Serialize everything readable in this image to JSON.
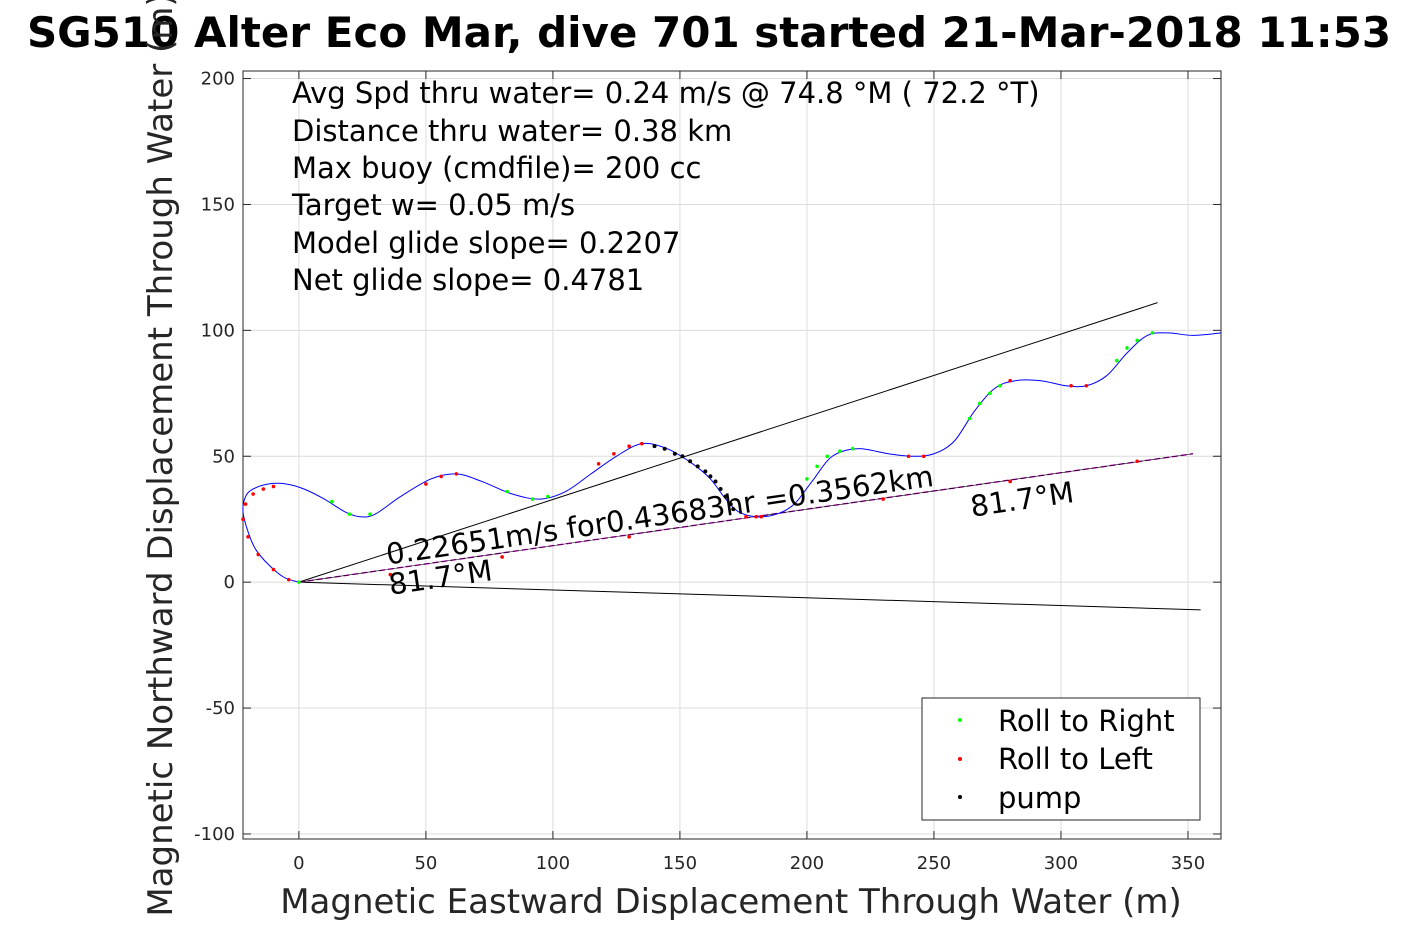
{
  "chart_data": {
    "type": "line",
    "title": "SG510 Alter Eco Mar, dive 701 started 21-Mar-2018 11:53",
    "xlabel": "Magnetic Eastward Displacement Through Water (m)",
    "ylabel": "Magnetic Northward Displacement Through Water (m)",
    "xlim": [
      -22,
      363
    ],
    "ylim": [
      -102,
      203
    ],
    "xticks": [
      0,
      50,
      100,
      150,
      200,
      250,
      300,
      350
    ],
    "yticks": [
      200,
      150,
      100,
      50,
      0,
      -50,
      -100
    ],
    "grid": true,
    "legend_position": "bottom-right",
    "info_lines": [
      "Avg Spd thru water=  0.24 m/s @  74.8 °M ( 72.2 °T)",
      "Distance thru water=  0.38 km",
      "Max buoy (cmdfile)= 200 cc",
      "Target w= 0.05 m/s",
      "Model glide slope= 0.2207",
      "Net glide slope= 0.4781"
    ],
    "track": {
      "color": "#0000ff",
      "x": [
        0,
        -6,
        -12,
        -17,
        -20,
        -22,
        -21,
        -18,
        -12,
        -5,
        2,
        10,
        18,
        24,
        30,
        40,
        52,
        62,
        72,
        84,
        95,
        105,
        115,
        125,
        135,
        145,
        155,
        162,
        168,
        173,
        180,
        188,
        195,
        202,
        210,
        220,
        232,
        242,
        250,
        258,
        266,
        274,
        282,
        292,
        302,
        310,
        318,
        326,
        334,
        342,
        352,
        363
      ],
      "y": [
        0,
        2,
        7,
        13,
        20,
        28,
        34,
        37,
        39,
        39,
        37,
        33,
        28,
        26,
        27,
        34,
        41,
        43,
        40,
        35,
        33,
        36,
        43,
        50,
        55,
        53,
        47,
        41,
        33,
        28,
        26,
        27,
        31,
        40,
        50,
        53,
        51,
        50,
        51,
        56,
        68,
        77,
        80,
        80,
        78,
        78,
        82,
        91,
        98,
        99,
        98,
        99
      ]
    },
    "lines": [
      {
        "name": "upper-bound",
        "color": "#000000",
        "x": [
          0,
          338
        ],
        "y": [
          0,
          111
        ]
      },
      {
        "name": "lower-bound",
        "color": "#000000",
        "x": [
          0,
          355
        ],
        "y": [
          0,
          -11
        ]
      },
      {
        "name": "heading-line",
        "color": "#c000c0",
        "x": [
          0,
          352
        ],
        "y": [
          0,
          51
        ]
      }
    ],
    "markers": {
      "roll_right": {
        "label": "Roll to Right",
        "color": "#00ff00",
        "points": [
          [
            0,
            0
          ],
          [
            13,
            32
          ],
          [
            20,
            27
          ],
          [
            28,
            27
          ],
          [
            82,
            36
          ],
          [
            92,
            33
          ],
          [
            98,
            34
          ],
          [
            200,
            41
          ],
          [
            204,
            46
          ],
          [
            208,
            50
          ],
          [
            213,
            52
          ],
          [
            218,
            53
          ],
          [
            264,
            65
          ],
          [
            268,
            71
          ],
          [
            272,
            75
          ],
          [
            276,
            78
          ],
          [
            322,
            88
          ],
          [
            326,
            93
          ],
          [
            330,
            96
          ],
          [
            336,
            99
          ]
        ]
      },
      "roll_left": {
        "label": "Roll to Left",
        "color": "#ff0000",
        "points": [
          [
            -4,
            1
          ],
          [
            -10,
            5
          ],
          [
            -16,
            11
          ],
          [
            -20,
            18
          ],
          [
            -22,
            25
          ],
          [
            -21,
            31
          ],
          [
            -18,
            35
          ],
          [
            -14,
            37
          ],
          [
            -10,
            38
          ],
          [
            50,
            39
          ],
          [
            56,
            42
          ],
          [
            62,
            43
          ],
          [
            118,
            47
          ],
          [
            124,
            51
          ],
          [
            130,
            54
          ],
          [
            135,
            55
          ],
          [
            176,
            26
          ],
          [
            182,
            26
          ],
          [
            240,
            50
          ],
          [
            246,
            50
          ],
          [
            280,
            80
          ],
          [
            304,
            78
          ],
          [
            310,
            78
          ],
          [
            36,
            3
          ],
          [
            80,
            10
          ],
          [
            130,
            18
          ],
          [
            180,
            26
          ],
          [
            230,
            33
          ],
          [
            280,
            40
          ],
          [
            330,
            48
          ]
        ]
      },
      "pump": {
        "label": "pump",
        "color": "#000000",
        "points": [
          [
            140,
            54
          ],
          [
            144,
            53
          ],
          [
            148,
            51
          ],
          [
            151,
            50
          ],
          [
            154,
            48
          ],
          [
            157,
            46
          ],
          [
            160,
            44
          ],
          [
            162,
            42
          ],
          [
            164,
            40
          ],
          [
            166,
            37
          ],
          [
            168,
            34
          ],
          [
            170,
            31
          ],
          [
            171,
            29
          ]
        ]
      }
    },
    "annotations": [
      {
        "text": "0.22651m/s for0.43683hr =0.3562km",
        "x": 35,
        "y": 7,
        "rotate": -8.2
      },
      {
        "text": "81.7°M",
        "x": 36,
        "y": -5,
        "rotate": -8.2
      },
      {
        "text": "81.7°M",
        "x": 265,
        "y": 26,
        "rotate": -8.2
      }
    ]
  }
}
